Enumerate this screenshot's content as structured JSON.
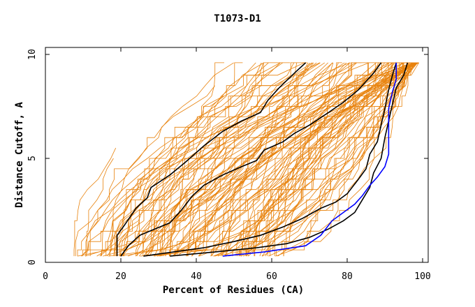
{
  "chart_data": {
    "type": "line",
    "title": "T1073-D1",
    "xlabel": "Percent of Residues (CA)",
    "ylabel": "Distance Cutoff, A",
    "xlim": [
      0,
      100
    ],
    "ylim": [
      0,
      10
    ],
    "x_ticks": [
      "0",
      "20",
      "40",
      "60",
      "80",
      "100"
    ],
    "y_ticks": [
      "0",
      "5",
      "10"
    ],
    "colors": {
      "background_series": "#e8820c",
      "highlight_black": "#000000",
      "highlight_blue": "#0000ff",
      "axes": "#000000"
    },
    "background_series_count": 120,
    "highlighted_series": [
      {
        "color": "#000000",
        "points": [
          [
            19,
            0.3
          ],
          [
            19,
            1.3
          ],
          [
            21,
            1.8
          ],
          [
            24,
            2.6
          ],
          [
            27,
            3.1
          ],
          [
            28,
            3.6
          ],
          [
            33,
            4.2
          ],
          [
            37,
            4.8
          ],
          [
            42,
            5.6
          ],
          [
            47,
            6.3
          ],
          [
            52,
            6.8
          ],
          [
            57,
            7.2
          ],
          [
            59,
            7.8
          ],
          [
            62,
            8.4
          ],
          [
            66,
            9.1
          ],
          [
            69,
            9.6
          ]
        ]
      },
      {
        "color": "#000000",
        "points": [
          [
            20,
            0.3
          ],
          [
            22,
            0.8
          ],
          [
            25,
            1.3
          ],
          [
            29,
            1.6
          ],
          [
            33,
            1.9
          ],
          [
            36,
            2.5
          ],
          [
            39,
            3.2
          ],
          [
            42,
            3.7
          ],
          [
            47,
            4.2
          ],
          [
            52,
            4.6
          ],
          [
            56,
            4.9
          ],
          [
            58,
            5.4
          ],
          [
            63,
            5.8
          ],
          [
            66,
            6.2
          ],
          [
            70,
            6.6
          ],
          [
            75,
            7.2
          ],
          [
            79,
            7.7
          ],
          [
            83,
            8.3
          ],
          [
            87,
            9.1
          ],
          [
            89,
            9.6
          ]
        ]
      },
      {
        "color": "#000000",
        "points": [
          [
            26,
            0.3
          ],
          [
            34,
            0.5
          ],
          [
            42,
            0.7
          ],
          [
            50,
            1.0
          ],
          [
            57,
            1.3
          ],
          [
            63,
            1.7
          ],
          [
            68,
            2.1
          ],
          [
            73,
            2.6
          ],
          [
            77,
            2.9
          ],
          [
            80,
            3.3
          ],
          [
            83,
            4.0
          ],
          [
            85,
            4.5
          ],
          [
            86,
            5.2
          ],
          [
            88,
            5.8
          ],
          [
            89,
            6.6
          ],
          [
            90,
            7.4
          ],
          [
            91,
            8.3
          ],
          [
            92,
            9.0
          ],
          [
            93,
            9.6
          ]
        ]
      },
      {
        "color": "#000000",
        "points": [
          [
            33,
            0.3
          ],
          [
            45,
            0.5
          ],
          [
            56,
            0.7
          ],
          [
            64,
            0.9
          ],
          [
            70,
            1.2
          ],
          [
            75,
            1.6
          ],
          [
            79,
            2.0
          ],
          [
            82,
            2.4
          ],
          [
            84,
            3.0
          ],
          [
            86,
            3.6
          ],
          [
            87,
            4.3
          ],
          [
            89,
            5.0
          ],
          [
            90,
            6.0
          ],
          [
            91,
            6.8
          ],
          [
            92,
            7.6
          ],
          [
            93,
            8.4
          ],
          [
            95,
            9.0
          ],
          [
            96,
            9.6
          ]
        ]
      },
      {
        "color": "#0000ff",
        "points": [
          [
            47,
            0.3
          ],
          [
            58,
            0.5
          ],
          [
            69,
            0.8
          ],
          [
            73,
            1.3
          ],
          [
            76,
            2.0
          ],
          [
            79,
            2.4
          ],
          [
            82,
            2.8
          ],
          [
            84,
            3.2
          ],
          [
            86,
            3.7
          ],
          [
            88,
            4.1
          ],
          [
            90,
            4.6
          ],
          [
            91,
            5.2
          ],
          [
            91,
            6.2
          ],
          [
            91,
            7.4
          ],
          [
            92,
            8.2
          ],
          [
            93,
            8.8
          ],
          [
            93,
            9.6
          ]
        ]
      }
    ]
  }
}
